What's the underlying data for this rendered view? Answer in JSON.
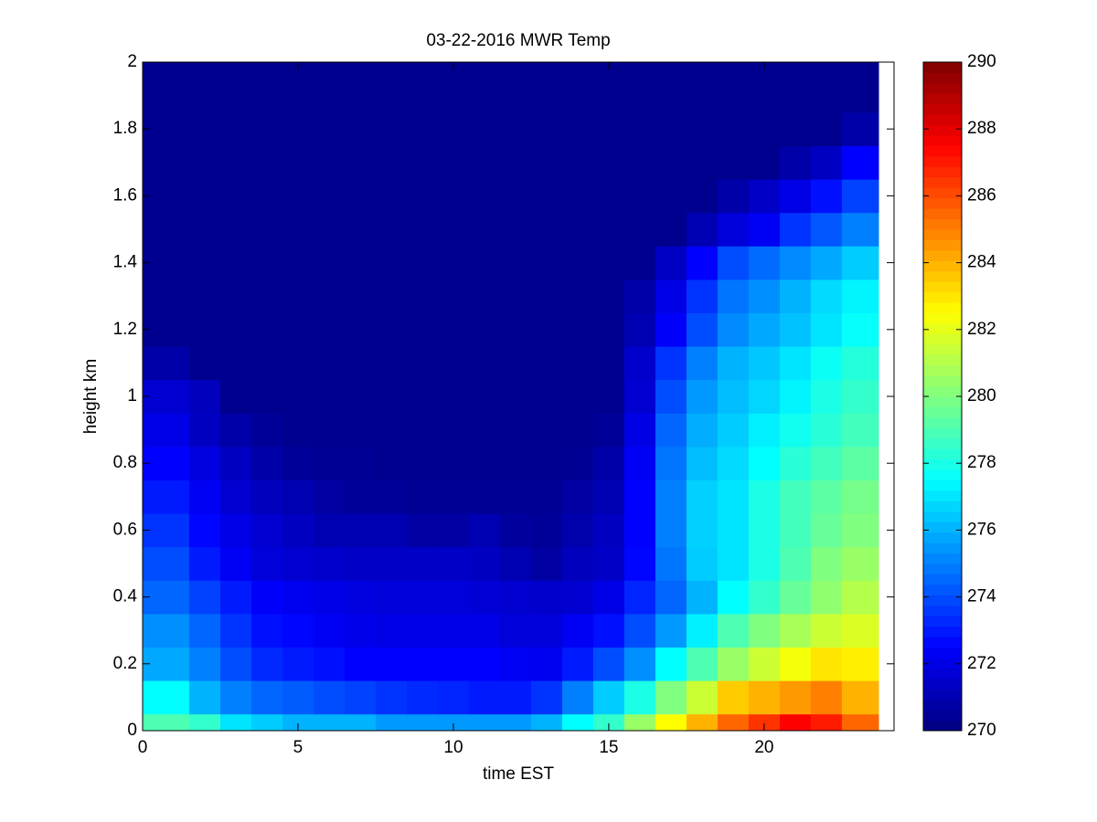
{
  "chart_data": {
    "type": "heatmap",
    "title": "03-22-2016 MWR Temp",
    "x_label": "time EST",
    "y_label": "height km",
    "colormap": "jet",
    "x_edges": [
      0,
      1.5,
      2.5,
      3.5,
      4.5,
      5.5,
      6.5,
      7.5,
      8.5,
      9.5,
      10.5,
      11.5,
      12.5,
      13.5,
      14.5,
      15.5,
      16.5,
      17.5,
      18.5,
      19.5,
      20.5,
      21.5,
      22.5,
      23.68
    ],
    "y_edges": [
      0,
      0.05,
      0.15,
      0.25,
      0.35,
      0.45,
      0.55,
      0.65,
      0.75,
      0.85,
      0.95,
      1.05,
      1.15,
      1.25,
      1.35,
      1.45,
      1.55,
      1.65,
      1.75,
      1.85,
      1.95,
      2
    ],
    "z": [
      [
        279,
        278.5,
        277,
        276.5,
        276,
        276,
        276,
        275.5,
        275.5,
        275.5,
        275.5,
        275.5,
        276,
        277.5,
        278.5,
        280.5,
        282.5,
        284,
        285.5,
        286.5,
        287.5,
        287,
        285.5
      ],
      [
        277.5,
        276,
        275,
        274.5,
        274.3,
        274,
        273.8,
        273.5,
        273.3,
        273.2,
        273,
        273,
        273.5,
        275,
        276.5,
        278,
        280,
        281.5,
        283.5,
        284,
        284.5,
        285,
        284
      ],
      [
        275.8,
        275,
        274,
        273.3,
        273,
        272.8,
        272.5,
        272.5,
        272.5,
        272.5,
        272.5,
        272.3,
        272.2,
        273,
        274,
        275.3,
        277.5,
        279,
        280.5,
        281.5,
        282.3,
        283,
        282.8
      ],
      [
        275.3,
        274.5,
        273.5,
        272.8,
        272.6,
        272.3,
        272.1,
        272,
        272,
        272,
        272,
        271.8,
        271.8,
        272.3,
        272.8,
        274,
        275.5,
        277.2,
        279,
        280,
        280.8,
        281.5,
        281.8
      ],
      [
        274.5,
        273.8,
        273,
        272.4,
        272.2,
        272,
        271.9,
        271.8,
        271.8,
        271.8,
        271.7,
        271.6,
        271.5,
        271.6,
        272,
        273.2,
        274.5,
        276,
        277.5,
        278.5,
        279.5,
        280.3,
        281
      ],
      [
        274,
        273,
        272.3,
        271.8,
        271.6,
        271.5,
        271.4,
        271.4,
        271.4,
        271.4,
        271.3,
        271,
        270.7,
        271.2,
        271.4,
        272.6,
        274.8,
        276.5,
        277,
        278,
        279,
        280,
        280.5
      ],
      [
        273.5,
        272.6,
        272,
        271.6,
        271.3,
        271,
        271,
        271,
        270.7,
        270.7,
        271,
        270.6,
        270.5,
        270.9,
        271.3,
        272.5,
        275,
        276.6,
        277,
        278,
        278.8,
        279.5,
        280
      ],
      [
        273,
        272.3,
        271.6,
        271.2,
        271,
        270.7,
        270.5,
        270.5,
        270.4,
        270.4,
        270.4,
        270.4,
        270.4,
        270.7,
        271,
        272.5,
        275,
        276.6,
        277,
        278,
        278.8,
        279.3,
        279.8
      ],
      [
        272.5,
        271.9,
        271.3,
        270.8,
        270.5,
        270.4,
        270.4,
        270.3,
        270.3,
        270.3,
        270.3,
        270.3,
        270.3,
        270.4,
        270.8,
        272.3,
        274.8,
        276.2,
        276.8,
        277.5,
        278.3,
        278.8,
        279.3
      ],
      [
        272,
        271.3,
        270.8,
        270.5,
        270.3,
        270.3,
        270.3,
        270.3,
        270.3,
        270.3,
        270.3,
        270.3,
        270.3,
        270.3,
        270.5,
        272,
        274.5,
        275.9,
        276.5,
        277.2,
        277.8,
        278.3,
        278.8
      ],
      [
        271.6,
        271.2,
        270.3,
        270.3,
        270.3,
        270.3,
        270.3,
        270.3,
        270.3,
        270.3,
        270.3,
        270.3,
        270.3,
        270.3,
        270.3,
        271.6,
        274,
        275.5,
        276.2,
        276.7,
        277.3,
        278,
        278.5
      ],
      [
        270.8,
        270.3,
        270.3,
        270.3,
        270.3,
        270.3,
        270.3,
        270.3,
        270.3,
        270.3,
        270.3,
        270.3,
        270.3,
        270.3,
        270.3,
        271.5,
        273.5,
        275,
        276,
        276.4,
        277,
        277.7,
        278.2
      ],
      [
        270.3,
        270.3,
        270.3,
        270.3,
        270.3,
        270.3,
        270.3,
        270.3,
        270.3,
        270.3,
        270.3,
        270.3,
        270.3,
        270.3,
        270.3,
        271,
        272.4,
        274,
        275.2,
        275.8,
        276.3,
        277,
        277.6
      ],
      [
        270.3,
        270.3,
        270.3,
        270.3,
        270.3,
        270.3,
        270.3,
        270.3,
        270.3,
        270.3,
        270.3,
        270.3,
        270.3,
        270.3,
        270.3,
        270.8,
        272,
        273.5,
        274.8,
        275.3,
        276,
        276.8,
        277.3
      ],
      [
        270.3,
        270.3,
        270.3,
        270.3,
        270.3,
        270.3,
        270.3,
        270.3,
        270.3,
        270.3,
        270.3,
        270.3,
        270.3,
        270.3,
        270.3,
        270.3,
        271.3,
        272.5,
        274,
        274.6,
        275.2,
        275.8,
        276.5
      ],
      [
        270.3,
        270.3,
        270.3,
        270.3,
        270.3,
        270.3,
        270.3,
        270.3,
        270.3,
        270.3,
        270.3,
        270.3,
        270.3,
        270.3,
        270.3,
        270.3,
        270.3,
        271,
        271.8,
        272.3,
        273.5,
        274.2,
        275
      ],
      [
        270.3,
        270.3,
        270.3,
        270.3,
        270.3,
        270.3,
        270.3,
        270.3,
        270.3,
        270.3,
        270.3,
        270.3,
        270.3,
        270.3,
        270.3,
        270.3,
        270.3,
        270.3,
        270.8,
        271.4,
        272,
        272.8,
        273.8
      ],
      [
        270.3,
        270.3,
        270.3,
        270.3,
        270.3,
        270.3,
        270.3,
        270.3,
        270.3,
        270.3,
        270.3,
        270.3,
        270.3,
        270.3,
        270.3,
        270.3,
        270.3,
        270.3,
        270.3,
        270.3,
        270.8,
        271.3,
        272.5
      ],
      [
        270.3,
        270.3,
        270.3,
        270.3,
        270.3,
        270.3,
        270.3,
        270.3,
        270.3,
        270.3,
        270.3,
        270.3,
        270.3,
        270.3,
        270.3,
        270.3,
        270.3,
        270.3,
        270.3,
        270.3,
        270.3,
        270.3,
        270.8
      ],
      [
        270.3,
        270.3,
        270.3,
        270.3,
        270.3,
        270.3,
        270.3,
        270.3,
        270.3,
        270.3,
        270.3,
        270.3,
        270.3,
        270.3,
        270.3,
        270.3,
        270.3,
        270.3,
        270.3,
        270.3,
        270.3,
        270.3,
        270.3
      ],
      [
        270.3,
        270.3,
        270.3,
        270.3,
        270.3,
        270.3,
        270.3,
        270.3,
        270.3,
        270.3,
        270.3,
        270.3,
        270.3,
        270.3,
        270.3,
        270.3,
        270.3,
        270.3,
        270.3,
        270.3,
        270.3,
        270.3,
        270.3
      ]
    ],
    "xlim": [
      0,
      24.18
    ],
    "xticks": [
      0,
      5,
      10,
      15,
      20
    ],
    "ylim": [
      0,
      2
    ],
    "yticks": [
      0,
      0.2,
      0.4,
      0.6,
      0.8,
      1,
      1.2,
      1.4,
      1.6,
      1.8,
      2
    ],
    "clim": [
      270,
      290
    ],
    "cticks": [
      270,
      272,
      274,
      276,
      278,
      280,
      282,
      284,
      286,
      288,
      290
    ]
  }
}
